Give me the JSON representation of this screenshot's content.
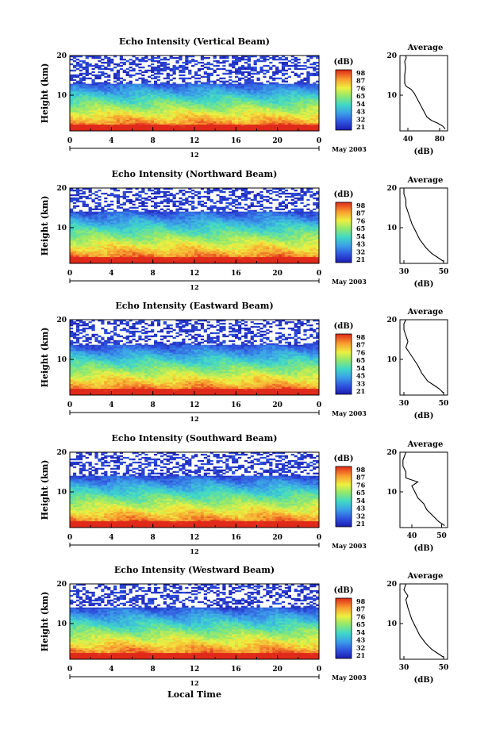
{
  "figure": {
    "xlabel": "Local Time",
    "date_label": "May 2003",
    "day_marker": "12",
    "colorbar_title": "(dB)",
    "avg_title": "Average",
    "avg_xlabel": "(dB)",
    "ylabel": "Height (km)"
  },
  "chart_data": [
    {
      "type": "heatmap",
      "title": "Echo Intensity (Vertical Beam)",
      "x_ticks": [
        "0",
        "4",
        "8",
        "12",
        "16",
        "20",
        "0"
      ],
      "y_ticks": [
        "20",
        "10"
      ],
      "xlim": [
        0,
        24
      ],
      "ylim": [
        1,
        20
      ],
      "colorbar_ticks": [
        "98",
        "87",
        "76",
        "65",
        "54",
        "43",
        "32",
        "21"
      ],
      "colorbar_range": [
        21,
        98
      ],
      "noise_top_km": 13.0,
      "avg_profile": {
        "type": "line",
        "x_ticks": [
          "40",
          "80"
        ],
        "xlim": [
          30,
          90
        ],
        "y_ticks": [
          "20",
          "10"
        ],
        "points": [
          [
            87,
            1.5
          ],
          [
            84,
            2.2
          ],
          [
            77,
            3.0
          ],
          [
            70,
            3.6
          ],
          [
            64,
            4.5
          ],
          [
            60,
            6.0
          ],
          [
            56,
            7.5
          ],
          [
            52,
            9.0
          ],
          [
            48,
            10.5
          ],
          [
            44,
            11.5
          ],
          [
            38,
            12.2
          ],
          [
            36,
            13.0
          ],
          [
            36,
            15
          ],
          [
            37,
            17
          ],
          [
            36,
            18.5
          ],
          [
            38,
            19.5
          ],
          [
            37,
            20
          ]
        ]
      }
    },
    {
      "type": "heatmap",
      "title": "Echo Intensity (Northward Beam)",
      "x_ticks": [
        "0",
        "4",
        "8",
        "12",
        "16",
        "20",
        "0"
      ],
      "y_ticks": [
        "20",
        "10"
      ],
      "xlim": [
        0,
        24
      ],
      "ylim": [
        1,
        20
      ],
      "colorbar_ticks": [
        "98",
        "87",
        "76",
        "65",
        "54",
        "43",
        "32",
        "21"
      ],
      "colorbar_range": [
        21,
        98
      ],
      "noise_top_km": 14.0,
      "avg_profile": {
        "type": "line",
        "x_ticks": [
          "30",
          "50"
        ],
        "xlim": [
          28,
          52
        ],
        "y_ticks": [
          "20",
          "10"
        ],
        "points": [
          [
            50,
            1.5
          ],
          [
            47,
            2.5
          ],
          [
            44,
            3.5
          ],
          [
            41,
            5.0
          ],
          [
            38,
            7.0
          ],
          [
            36,
            9.0
          ],
          [
            34,
            11.0
          ],
          [
            33,
            12.5
          ],
          [
            32,
            14.0
          ],
          [
            31,
            15.5
          ],
          [
            31,
            17.0
          ],
          [
            30,
            18.5
          ],
          [
            30,
            20
          ]
        ]
      }
    },
    {
      "type": "heatmap",
      "title": "Echo Intensity (Eastward Beam)",
      "x_ticks": [
        "0",
        "4",
        "8",
        "12",
        "16",
        "20",
        "0"
      ],
      "y_ticks": [
        "20",
        "10"
      ],
      "xlim": [
        0,
        24
      ],
      "ylim": [
        1,
        20
      ],
      "colorbar_ticks": [
        "98",
        "87",
        "76",
        "65",
        "54",
        "45",
        "33",
        "21"
      ],
      "colorbar_range": [
        21,
        98
      ],
      "noise_top_km": 13.5,
      "avg_profile": {
        "type": "line",
        "x_ticks": [
          "30",
          "50"
        ],
        "xlim": [
          28,
          52
        ],
        "y_ticks": [
          "20",
          "10"
        ],
        "points": [
          [
            50,
            1.5
          ],
          [
            48,
            2.5
          ],
          [
            46,
            3.2
          ],
          [
            42,
            4.5
          ],
          [
            39,
            6.5
          ],
          [
            37,
            8.5
          ],
          [
            35,
            10.0
          ],
          [
            33,
            11.5
          ],
          [
            31,
            13.0
          ],
          [
            32,
            14.5
          ],
          [
            31,
            16.0
          ],
          [
            30,
            17.5
          ],
          [
            30,
            19
          ],
          [
            31,
            20
          ]
        ]
      }
    },
    {
      "type": "heatmap",
      "title": "Echo Intensity (Southward Beam)",
      "x_ticks": [
        "0",
        "4",
        "8",
        "12",
        "16",
        "20",
        "0"
      ],
      "y_ticks": [
        "20",
        "10"
      ],
      "xlim": [
        0,
        24
      ],
      "ylim": [
        1,
        20
      ],
      "colorbar_ticks": [
        "98",
        "87",
        "76",
        "65",
        "54",
        "43",
        "32",
        "21"
      ],
      "colorbar_range": [
        21,
        98
      ],
      "noise_top_km": 14.0,
      "avg_profile": {
        "type": "line",
        "x_ticks": [
          "40",
          "50"
        ],
        "xlim": [
          36,
          52
        ],
        "y_ticks": [
          "20",
          "10"
        ],
        "points": [
          [
            51,
            1.5
          ],
          [
            49,
            2.5
          ],
          [
            47,
            4.0
          ],
          [
            45,
            5.5
          ],
          [
            44,
            7.0
          ],
          [
            42,
            8.5
          ],
          [
            41,
            10.0
          ],
          [
            40,
            11.5
          ],
          [
            42,
            12.5
          ],
          [
            38,
            13.5
          ],
          [
            38,
            15.0
          ],
          [
            37,
            16.5
          ],
          [
            37,
            18
          ],
          [
            38,
            20
          ]
        ]
      }
    },
    {
      "type": "heatmap",
      "title": "Echo Intensity (Westward Beam)",
      "x_ticks": [
        "0",
        "4",
        "8",
        "12",
        "16",
        "20",
        "0"
      ],
      "y_ticks": [
        "20",
        "10"
      ],
      "xlim": [
        0,
        24
      ],
      "ylim": [
        1,
        20
      ],
      "colorbar_ticks": [
        "98",
        "87",
        "76",
        "65",
        "54",
        "43",
        "32",
        "21"
      ],
      "colorbar_range": [
        21,
        98
      ],
      "noise_top_km": 14.0,
      "avg_profile": {
        "type": "line",
        "x_ticks": [
          "30",
          "50"
        ],
        "xlim": [
          28,
          52
        ],
        "y_ticks": [
          "20",
          "10"
        ],
        "points": [
          [
            50,
            1.5
          ],
          [
            47,
            2.5
          ],
          [
            44,
            3.5
          ],
          [
            41,
            5.0
          ],
          [
            38,
            7.0
          ],
          [
            36,
            9.0
          ],
          [
            34,
            11.0
          ],
          [
            33,
            12.5
          ],
          [
            32,
            14.0
          ],
          [
            31,
            16.0
          ],
          [
            32,
            17.0
          ],
          [
            30,
            18.5
          ],
          [
            31,
            20
          ]
        ]
      }
    }
  ]
}
